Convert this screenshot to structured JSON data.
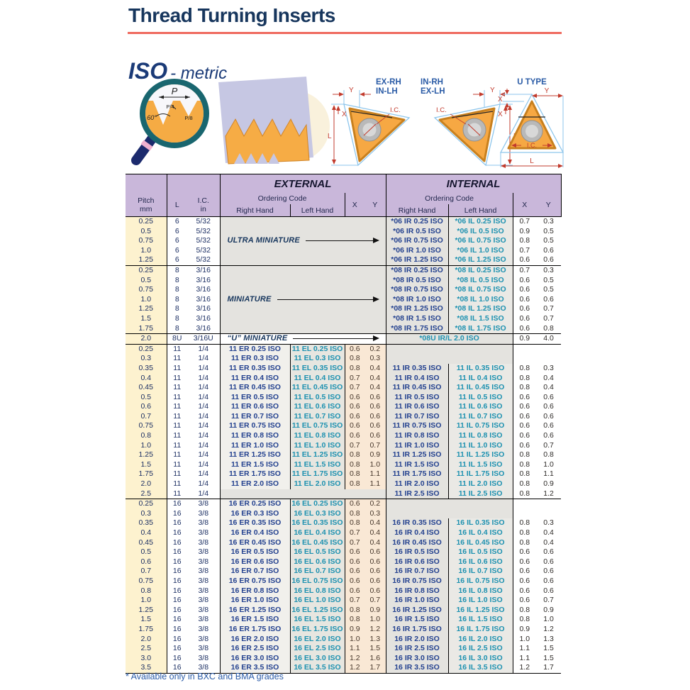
{
  "page": {
    "title": "Thread Turning Inserts",
    "subtitle_iso": "ISO",
    "subtitle_metric": "- metric",
    "footnote": "* Available only in BXC and BMA grades"
  },
  "colors": {
    "accent_red": "#ef6a5e",
    "header_bg": "#c9b7da",
    "right_hand_code": "#23418f",
    "left_hand_code": "#1d91b0",
    "insert_orange": "#f6a843"
  },
  "diagrams": {
    "magnifier": {
      "p": "P",
      "p4": "P/4",
      "p8": "P/8",
      "angle": "60°"
    },
    "dims": {
      "l": "L",
      "x": "X",
      "y": "Y",
      "ic": "I.C."
    },
    "insert1": {
      "line1": "EX-RH",
      "line2": "IN-LH"
    },
    "insert2": {
      "line1": "IN-RH",
      "line2": "EX-LH"
    },
    "insert3": {
      "title": "U TYPE"
    }
  },
  "table": {
    "headers": {
      "pitch": "Pitch",
      "pitch_unit": "mm",
      "l": "L",
      "ic": "I.C.",
      "ic_unit": "in",
      "external": "EXTERNAL",
      "internal": "INTERNAL",
      "ordering_code": "Ordering Code",
      "right_hand": "Right Hand",
      "left_hand": "Left Hand",
      "x": "X",
      "y": "Y"
    },
    "groups": [
      {
        "name": "06",
        "l": "6",
        "ic": "5/32",
        "note": "ULTRA MINIATURE",
        "rows": [
          {
            "p": "0.25",
            "ir": "*06 IR 0.25 ISO",
            "il": "*06 IL 0.25 ISO",
            "ix": "0.7",
            "iy": "0.3"
          },
          {
            "p": "0.5",
            "ir": "*06 IR 0.5 ISO",
            "il": "*06 IL 0.5 ISO",
            "ix": "0.9",
            "iy": "0.5"
          },
          {
            "p": "0.75",
            "ir": "*06 IR 0.75 ISO",
            "il": "*06 IL 0.75 ISO",
            "ix": "0.8",
            "iy": "0.5"
          },
          {
            "p": "1.0",
            "ir": "*06 IR 1.0 ISO",
            "il": "*06 IL 1.0 ISO",
            "ix": "0.7",
            "iy": "0.6"
          },
          {
            "p": "1.25",
            "ir": "*06 IR 1.25 ISO",
            "il": "*06 IL 1.25 ISO",
            "ix": "0.6",
            "iy": "0.6"
          }
        ]
      },
      {
        "name": "08",
        "l": "8",
        "ic": "3/16",
        "note": "MINIATURE",
        "rows": [
          {
            "p": "0.25",
            "ir": "*08 IR 0.25 ISO",
            "il": "*08 IL 0.25 ISO",
            "ix": "0.7",
            "iy": "0.3"
          },
          {
            "p": "0.5",
            "ir": "*08 IR 0.5 ISO",
            "il": "*08 IL 0.5 ISO",
            "ix": "0.6",
            "iy": "0.5"
          },
          {
            "p": "0.75",
            "ir": "*08 IR 0.75 ISO",
            "il": "*08 IL 0.75 ISO",
            "ix": "0.6",
            "iy": "0.5"
          },
          {
            "p": "1.0",
            "ir": "*08 IR 1.0 ISO",
            "il": "*08 IL 1.0 ISO",
            "ix": "0.6",
            "iy": "0.6"
          },
          {
            "p": "1.25",
            "ir": "*08 IR 1.25 ISO",
            "il": "*08 IL 1.25 ISO",
            "ix": "0.6",
            "iy": "0.7"
          },
          {
            "p": "1.5",
            "ir": "*08 IR 1.5 ISO",
            "il": "*08 IL 1.5 ISO",
            "ix": "0.6",
            "iy": "0.7"
          },
          {
            "p": "1.75",
            "ir": "*08 IR 1.75 ISO",
            "il": "*08 IL 1.75 ISO",
            "ix": "0.6",
            "iy": "0.8"
          }
        ]
      },
      {
        "name": "08U",
        "l": "8U",
        "ic": "3/16U",
        "rows": [
          {
            "p": "2.0",
            "note": "“U” MINIATURE",
            "code": "*08U IR/L 2.0 ISO",
            "ix": "0.9",
            "iy": "4.0"
          }
        ]
      },
      {
        "name": "11",
        "l": "11",
        "ic": "1/4",
        "rows": [
          {
            "p": "0.25",
            "er": "11 ER 0.25 ISO",
            "el": "11 EL 0.25 ISO",
            "ex": "0.6",
            "ey": "0.2"
          },
          {
            "p": "0.3",
            "er": "11 ER 0.3 ISO",
            "el": "11 EL 0.3 ISO",
            "ex": "0.8",
            "ey": "0.3"
          },
          {
            "p": "0.35",
            "er": "11 ER 0.35 ISO",
            "el": "11 EL 0.35 ISO",
            "ex": "0.8",
            "ey": "0.4",
            "ir": "11 IR 0.35 ISO",
            "il": "11 IL 0.35 ISO",
            "ix": "0.8",
            "iy": "0.3"
          },
          {
            "p": "0.4",
            "er": "11 ER 0.4 ISO",
            "el": "11 EL 0.4 ISO",
            "ex": "0.7",
            "ey": "0.4",
            "ir": "11 IR 0.4 ISO",
            "il": "11 IL 0.4 ISO",
            "ix": "0.8",
            "iy": "0.4"
          },
          {
            "p": "0.45",
            "er": "11 ER 0.45 ISO",
            "el": "11 EL 0.45 ISO",
            "ex": "0.7",
            "ey": "0.4",
            "ir": "11 IR 0.45 ISO",
            "il": "11 IL 0.45 ISO",
            "ix": "0.8",
            "iy": "0.4"
          },
          {
            "p": "0.5",
            "er": "11 ER 0.5 ISO",
            "el": "11 EL 0.5 ISO",
            "ex": "0.6",
            "ey": "0.6",
            "ir": "11 IR 0.5 ISO",
            "il": "11 IL 0.5 ISO",
            "ix": "0.6",
            "iy": "0.6"
          },
          {
            "p": "0.6",
            "er": "11 ER 0.6 ISO",
            "el": "11 EL 0.6 ISO",
            "ex": "0.6",
            "ey": "0.6",
            "ir": "11 IR 0.6 ISO",
            "il": "11 IL 0.6 ISO",
            "ix": "0.6",
            "iy": "0.6"
          },
          {
            "p": "0.7",
            "er": "11 ER 0.7 ISO",
            "el": "11 EL 0.7 ISO",
            "ex": "0.6",
            "ey": "0.6",
            "ir": "11 IR 0.7 ISO",
            "il": "11 IL 0.7 ISO",
            "ix": "0.6",
            "iy": "0.6"
          },
          {
            "p": "0.75",
            "er": "11 ER 0.75 ISO",
            "el": "11 EL 0.75 ISO",
            "ex": "0.6",
            "ey": "0.6",
            "ir": "11 IR 0.75 ISO",
            "il": "11 IL 0.75 ISO",
            "ix": "0.6",
            "iy": "0.6"
          },
          {
            "p": "0.8",
            "er": "11 ER 0.8 ISO",
            "el": "11 EL 0.8 ISO",
            "ex": "0.6",
            "ey": "0.6",
            "ir": "11 IR 0.8 ISO",
            "il": "11 IL 0.8 ISO",
            "ix": "0.6",
            "iy": "0.6"
          },
          {
            "p": "1.0",
            "er": "11 ER 1.0 ISO",
            "el": "11 EL 1.0 ISO",
            "ex": "0.7",
            "ey": "0.7",
            "ir": "11 IR 1.0 ISO",
            "il": "11 IL 1.0 ISO",
            "ix": "0.6",
            "iy": "0.7"
          },
          {
            "p": "1.25",
            "er": "11 ER 1.25 ISO",
            "el": "11 EL 1.25 ISO",
            "ex": "0.8",
            "ey": "0.9",
            "ir": "11 IR 1.25 ISO",
            "il": "11 IL 1.25 ISO",
            "ix": "0.8",
            "iy": "0.8"
          },
          {
            "p": "1.5",
            "er": "11 ER 1.5 ISO",
            "el": "11 EL 1.5 ISO",
            "ex": "0.8",
            "ey": "1.0",
            "ir": "11 IR 1.5 ISO",
            "il": "11 IL 1.5 ISO",
            "ix": "0.8",
            "iy": "1.0"
          },
          {
            "p": "1.75",
            "er": "11 ER 1.75 ISO",
            "el": "11 EL 1.75 ISO",
            "ex": "0.8",
            "ey": "1.1",
            "ir": "11 IR 1.75 ISO",
            "il": "11 IL 1.75 ISO",
            "ix": "0.8",
            "iy": "1.1"
          },
          {
            "p": "2.0",
            "er": "11 ER 2.0 ISO",
            "el": "11 EL 2.0 ISO",
            "ex": "0.8",
            "ey": "1.1",
            "ir": "11 IR 2.0 ISO",
            "il": "11 IL 2.0 ISO",
            "ix": "0.8",
            "iy": "0.9"
          },
          {
            "p": "2.5",
            "ir": "11 IR 2.5 ISO",
            "il": "11 IL 2.5 ISO",
            "ix": "0.8",
            "iy": "1.2"
          }
        ]
      },
      {
        "name": "16",
        "l": "16",
        "ic": "3/8",
        "rows": [
          {
            "p": "0.25",
            "er": "16 ER 0.25 ISO",
            "el": "16 EL 0.25 ISO",
            "ex": "0.6",
            "ey": "0.2"
          },
          {
            "p": "0.3",
            "er": "16 ER 0.3 ISO",
            "el": "16 EL 0.3 ISO",
            "ex": "0.8",
            "ey": "0.3"
          },
          {
            "p": "0.35",
            "er": "16 ER 0.35 ISO",
            "el": "16 EL 0.35 ISO",
            "ex": "0.8",
            "ey": "0.4",
            "ir": "16 IR 0.35 ISO",
            "il": "16 IL 0.35 ISO",
            "ix": "0.8",
            "iy": "0.3"
          },
          {
            "p": "0.4",
            "er": "16 ER 0.4 ISO",
            "el": "16 EL 0.4 ISO",
            "ex": "0.7",
            "ey": "0.4",
            "ir": "16 IR 0.4 ISO",
            "il": "16 IL 0.4 ISO",
            "ix": "0.8",
            "iy": "0.4"
          },
          {
            "p": "0.45",
            "er": "16 ER 0.45 ISO",
            "el": "16 EL 0.45 ISO",
            "ex": "0.7",
            "ey": "0.4",
            "ir": "16 IR 0.45 ISO",
            "il": "16 IL 0.45 ISO",
            "ix": "0.8",
            "iy": "0.4"
          },
          {
            "p": "0.5",
            "er": "16 ER 0.5 ISO",
            "el": "16 EL 0.5 ISO",
            "ex": "0.6",
            "ey": "0.6",
            "ir": "16 IR 0.5 ISO",
            "il": "16 IL 0.5 ISO",
            "ix": "0.6",
            "iy": "0.6"
          },
          {
            "p": "0.6",
            "er": "16 ER 0.6 ISO",
            "el": "16 EL 0.6 ISO",
            "ex": "0.6",
            "ey": "0.6",
            "ir": "16 IR 0.6 ISO",
            "il": "16 IL 0.6 ISO",
            "ix": "0.6",
            "iy": "0.6"
          },
          {
            "p": "0.7",
            "er": "16 ER 0.7 ISO",
            "el": "16 EL 0.7 ISO",
            "ex": "0.6",
            "ey": "0.6",
            "ir": "16 IR 0.7 ISO",
            "il": "16 IL 0.7 ISO",
            "ix": "0.6",
            "iy": "0.6"
          },
          {
            "p": "0.75",
            "er": "16 ER 0.75 ISO",
            "el": "16 EL 0.75 ISO",
            "ex": "0.6",
            "ey": "0.6",
            "ir": "16 IR 0.75 ISO",
            "il": "16 IL 0.75 ISO",
            "ix": "0.6",
            "iy": "0.6"
          },
          {
            "p": "0.8",
            "er": "16 ER 0.8 ISO",
            "el": "16 EL 0.8 ISO",
            "ex": "0.6",
            "ey": "0.6",
            "ir": "16 IR 0.8 ISO",
            "il": "16 IL 0.8 ISO",
            "ix": "0.6",
            "iy": "0.6"
          },
          {
            "p": "1.0",
            "er": "16 ER 1.0 ISO",
            "el": "16 EL 1.0 ISO",
            "ex": "0.7",
            "ey": "0.7",
            "ir": "16 IR 1.0 ISO",
            "il": "16 IL 1.0 ISO",
            "ix": "0.6",
            "iy": "0.7"
          },
          {
            "p": "1.25",
            "er": "16 ER 1.25 ISO",
            "el": "16 EL 1.25 ISO",
            "ex": "0.8",
            "ey": "0.9",
            "ir": "16 IR 1.25 ISO",
            "il": "16 IL 1.25 ISO",
            "ix": "0.8",
            "iy": "0.9"
          },
          {
            "p": "1.5",
            "er": "16 ER 1.5 ISO",
            "el": "16 EL 1.5 ISO",
            "ex": "0.8",
            "ey": "1.0",
            "ir": "16 IR 1.5 ISO",
            "il": "16 IL 1.5 ISO",
            "ix": "0.8",
            "iy": "1.0"
          },
          {
            "p": "1.75",
            "er": "16 ER 1.75 ISO",
            "el": "16 EL 1.75 ISO",
            "ex": "0.9",
            "ey": "1.2",
            "ir": "16 IR 1.75 ISO",
            "il": "16 IL 1.75 ISO",
            "ix": "0.9",
            "iy": "1.2"
          },
          {
            "p": "2.0",
            "er": "16 ER 2.0 ISO",
            "el": "16 EL 2.0 ISO",
            "ex": "1.0",
            "ey": "1.3",
            "ir": "16 IR 2.0 ISO",
            "il": "16 IL 2.0 ISO",
            "ix": "1.0",
            "iy": "1.3"
          },
          {
            "p": "2.5",
            "er": "16 ER 2.5 ISO",
            "el": "16 EL 2.5 ISO",
            "ex": "1.1",
            "ey": "1.5",
            "ir": "16 IR 2.5 ISO",
            "il": "16 IL 2.5 ISO",
            "ix": "1.1",
            "iy": "1.5"
          },
          {
            "p": "3.0",
            "er": "16 ER 3.0 ISO",
            "el": "16 EL 3.0 ISO",
            "ex": "1.2",
            "ey": "1.6",
            "ir": "16 IR 3.0 ISO",
            "il": "16 IL 3.0 ISO",
            "ix": "1.1",
            "iy": "1.5"
          },
          {
            "p": "3.5",
            "er": "16 ER 3.5 ISO",
            "el": "16 EL 3.5 ISO",
            "ex": "1.2",
            "ey": "1.7",
            "ir": "16 IR 3.5 ISO",
            "il": "16 IL 3.5 ISO",
            "ix": "1.2",
            "iy": "1.7"
          }
        ]
      }
    ]
  }
}
